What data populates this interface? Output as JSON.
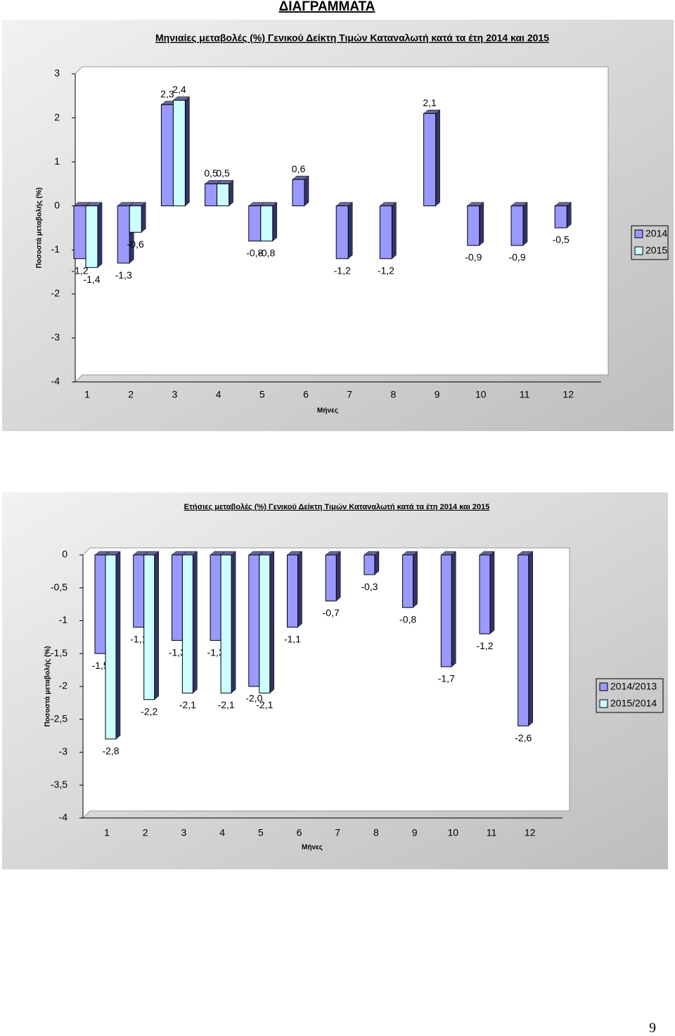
{
  "title": "ΔΙΑΓΡΑΜΜΑΤΑ",
  "page_number": "9",
  "chart_data": [
    {
      "type": "bar",
      "title": "Μηνιαίες μεταβολές (%) Γενικού Δείκτη Τιμών Καταναλωτή κατά τα έτη 2014 και 2015",
      "x_label": "Μήνες",
      "y_label": "Ποσοστά μεταβολής (%)",
      "categories": [
        "1",
        "2",
        "3",
        "4",
        "5",
        "6",
        "7",
        "8",
        "9",
        "10",
        "11",
        "12"
      ],
      "series": [
        {
          "name": "2014",
          "color": "#9999ff",
          "values": [
            -1.2,
            -1.3,
            2.3,
            0.5,
            -0.8,
            0.6,
            -1.2,
            -1.2,
            2.1,
            -0.9,
            -0.9,
            -0.5
          ],
          "value_labels": [
            "-1,2",
            "-1,3",
            "2,3",
            "0,5",
            "-0,8",
            "0,6",
            "-1,2",
            "-1,2",
            "2,1",
            "-0,9",
            "-0,9",
            "-0,5"
          ]
        },
        {
          "name": "2015",
          "color": "#ccffff",
          "values": [
            -1.4,
            -0.6,
            2.4,
            0.5,
            -0.8,
            null,
            null,
            null,
            null,
            null,
            null,
            null
          ],
          "value_labels": [
            "-1,4",
            "-0,6",
            "2,4",
            "0,5",
            "-0,8",
            null,
            null,
            null,
            null,
            null,
            null,
            null
          ]
        }
      ],
      "ylim": [
        -4,
        3
      ],
      "yticks": [
        3,
        2,
        1,
        0,
        -1,
        -2,
        -3,
        -4
      ],
      "grid": false,
      "legend": "right"
    },
    {
      "type": "bar",
      "title": "Ετήσιες μεταβολές (%) Γενικού Δείκτη Τιμών Καταναλωτή κατά τα έτη 2014 και 2015",
      "x_label": "Μήνες",
      "y_label": "Ποσοστά μεταβολής (%)",
      "categories": [
        "1",
        "2",
        "3",
        "4",
        "5",
        "6",
        "7",
        "8",
        "9",
        "10",
        "11",
        "12"
      ],
      "series": [
        {
          "name": "2014/2013",
          "color": "#9999ff",
          "values": [
            -1.5,
            -1.1,
            -1.3,
            -1.3,
            -2.0,
            -1.1,
            -0.7,
            -0.3,
            -0.8,
            -1.7,
            -1.2,
            -2.6
          ],
          "value_labels": [
            "-1,5",
            "-1,1",
            "-1,3",
            "-1,3",
            "-2,0",
            "-1,1",
            "-0,7",
            "-0,3",
            "-0,8",
            "-1,7",
            "-1,2",
            "-2,6"
          ]
        },
        {
          "name": "2015/2014",
          "color": "#ccffff",
          "values": [
            -2.8,
            -2.2,
            -2.1,
            -2.1,
            -2.1,
            null,
            null,
            null,
            null,
            null,
            null,
            null
          ],
          "value_labels": [
            "-2,8",
            "-2,2",
            "-2,1",
            "-2,1",
            "-2,1",
            null,
            null,
            null,
            null,
            null,
            null,
            null
          ]
        }
      ],
      "ylim": [
        -4,
        0
      ],
      "yticks": [
        0,
        {
          "value": -0.5,
          "label": "-0,5"
        },
        -1,
        {
          "value": -1.5,
          "label": "-1,5"
        },
        -2,
        {
          "value": -2.5,
          "label": "-2,5"
        },
        -3,
        {
          "value": -3.5,
          "label": "-3,5"
        },
        -4
      ],
      "grid": false,
      "legend": "right"
    }
  ]
}
